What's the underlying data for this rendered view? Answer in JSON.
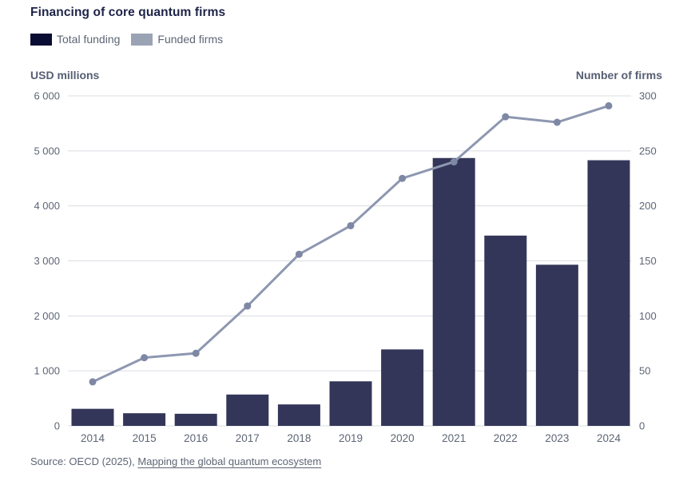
{
  "title": "Financing of core quantum firms",
  "legend": {
    "total_funding": "Total funding",
    "funded_firms": "Funded firms"
  },
  "axes": {
    "left_header": "USD millions",
    "right_header": "Number of firms"
  },
  "source": {
    "prefix": "Source: OECD (2025), ",
    "link_text": "Mapping the global quantum ecosystem"
  },
  "colors": {
    "bar": "#343659",
    "legend_bar_swatch": "#0a0d33",
    "legend_line_swatch": "#9aa3b4",
    "line": "#8e97b0",
    "dot": "#7e88a5",
    "gridline": "#d9dce3",
    "tick_text": "#5d6575",
    "title_text": "#1d2347"
  },
  "chart_data": {
    "type": "bar",
    "title": "Financing of core quantum firms",
    "categories": [
      "2014",
      "2015",
      "2016",
      "2017",
      "2018",
      "2019",
      "2020",
      "2021",
      "2022",
      "2023",
      "2024"
    ],
    "series": [
      {
        "name": "Total funding",
        "type": "bar",
        "axis": "left",
        "unit": "USD millions",
        "values": [
          310,
          230,
          220,
          570,
          390,
          810,
          1390,
          4870,
          3460,
          2930,
          4830
        ]
      },
      {
        "name": "Funded firms",
        "type": "line",
        "axis": "right",
        "unit": "Number of firms",
        "values": [
          40,
          62,
          66,
          109,
          156,
          182,
          225,
          240,
          281,
          276,
          291
        ]
      }
    ],
    "left_axis": {
      "label": "USD millions",
      "min": 0,
      "max": 6000,
      "tick_values": [
        0,
        1000,
        2000,
        3000,
        4000,
        5000,
        6000
      ],
      "tick_labels": [
        "0",
        "1 000",
        "2 000",
        "3 000",
        "4 000",
        "5 000",
        "6 000"
      ]
    },
    "right_axis": {
      "label": "Number of firms",
      "min": 0,
      "max": 300,
      "tick_values": [
        0,
        50,
        100,
        150,
        200,
        250,
        300
      ],
      "tick_labels": [
        "0",
        "50",
        "100",
        "150",
        "200",
        "250",
        "300"
      ]
    },
    "grid": true,
    "legend_position": "top-left"
  }
}
